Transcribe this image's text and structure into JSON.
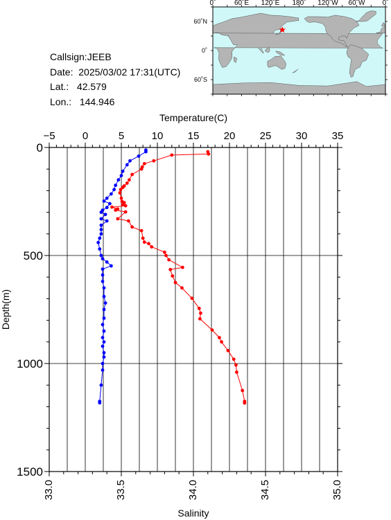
{
  "info": {
    "callsign": "Callsign:JEEB",
    "date_label": "Date:",
    "date_value": "2025/03/02 17:31(UTC)",
    "lat_label": "Lat.:",
    "lat_value": "42.579",
    "lon_label": "Lon.:",
    "lon_value": "144.946"
  },
  "map": {
    "top_labels": [
      "0˚",
      "60˚E",
      "120˚E",
      "180˚",
      "120˚W",
      "60˚W",
      "0˚"
    ],
    "lat_labels": [
      "60˚N",
      "0˚",
      "60˚S"
    ],
    "ocean_color": "#d0f8f8",
    "land_color": "#b4b4b4",
    "marker_color": "#ff0000",
    "marker": {
      "lon": 144.946,
      "lat": 42.579
    }
  },
  "chart_data": {
    "type": "line",
    "ylabel": "Depth(m)",
    "ylim": [
      0,
      1500
    ],
    "y_ticks": [
      0,
      500,
      1000,
      1500
    ],
    "y_tick_labels": [
      "0",
      "500",
      "1000",
      "1500"
    ],
    "y_inverted": true,
    "grid": true,
    "top_axis": {
      "label": "Temperature(C)",
      "range": [
        -5,
        35
      ],
      "ticks": [
        -5,
        0,
        5,
        10,
        15,
        20,
        25,
        30,
        35
      ],
      "tick_labels": [
        "−5",
        "0",
        "5",
        "10",
        "15",
        "20",
        "25",
        "30",
        "35"
      ]
    },
    "bottom_axis": {
      "label": "Salinity",
      "range": [
        33.0,
        35.0
      ],
      "ticks": [
        33.0,
        33.5,
        34.0,
        34.5,
        35.0
      ],
      "tick_labels": [
        "33.0",
        "33.5",
        "34.0",
        "34.5",
        "35.0"
      ]
    },
    "series": [
      {
        "axis": "top",
        "color": "#ff0000",
        "points": [
          [
            17.0,
            20
          ],
          [
            17.1,
            30
          ],
          [
            12.0,
            35
          ],
          [
            9.5,
            62
          ],
          [
            8.2,
            75
          ],
          [
            7.9,
            90
          ],
          [
            7.8,
            100
          ],
          [
            6.5,
            125
          ],
          [
            6.1,
            150
          ],
          [
            5.8,
            165
          ],
          [
            5.4,
            178
          ],
          [
            5.2,
            185
          ],
          [
            4.9,
            195
          ],
          [
            4.8,
            210
          ],
          [
            5.0,
            235
          ],
          [
            5.1,
            250
          ],
          [
            5.4,
            255
          ],
          [
            5.2,
            265
          ],
          [
            5.6,
            270
          ],
          [
            3.7,
            276
          ],
          [
            4.5,
            285
          ],
          [
            4.2,
            290
          ],
          [
            5.6,
            298
          ],
          [
            4.5,
            330
          ],
          [
            6.0,
            340
          ],
          [
            6.5,
            368
          ],
          [
            7.8,
            385
          ],
          [
            8.0,
            420
          ],
          [
            8.2,
            438
          ],
          [
            8.8,
            445
          ],
          [
            9.2,
            460
          ],
          [
            11.0,
            485
          ],
          [
            11.2,
            500
          ],
          [
            11.6,
            520
          ],
          [
            13.5,
            555
          ],
          [
            11.8,
            565
          ],
          [
            12.1,
            595
          ],
          [
            12.5,
            625
          ],
          [
            13.4,
            650
          ],
          [
            14.8,
            698
          ],
          [
            15.8,
            745
          ],
          [
            16.0,
            767
          ],
          [
            15.9,
            793
          ],
          [
            17.6,
            845
          ],
          [
            18.6,
            880
          ],
          [
            18.9,
            900
          ],
          [
            19.8,
            940
          ],
          [
            20.6,
            980
          ],
          [
            20.9,
            1007
          ],
          [
            21.0,
            1040
          ],
          [
            21.8,
            1125
          ],
          [
            22.1,
            1175
          ],
          [
            22.1,
            1183
          ]
        ]
      },
      {
        "axis": "bottom",
        "color": "#0000ff",
        "points": [
          [
            33.67,
            12
          ],
          [
            33.67,
            20
          ],
          [
            33.62,
            40
          ],
          [
            33.56,
            62
          ],
          [
            33.54,
            80
          ],
          [
            33.51,
            110
          ],
          [
            33.5,
            130
          ],
          [
            33.48,
            150
          ],
          [
            33.46,
            175
          ],
          [
            33.45,
            195
          ],
          [
            33.43,
            215
          ],
          [
            33.4,
            235
          ],
          [
            33.38,
            248
          ],
          [
            33.42,
            260
          ],
          [
            33.4,
            278
          ],
          [
            33.37,
            290
          ],
          [
            33.36,
            300
          ],
          [
            33.39,
            310
          ],
          [
            33.36,
            330
          ],
          [
            33.4,
            340
          ],
          [
            33.36,
            360
          ],
          [
            33.36,
            380
          ],
          [
            33.36,
            400
          ],
          [
            33.35,
            420
          ],
          [
            33.34,
            440
          ],
          [
            33.35,
            470
          ],
          [
            33.36,
            500
          ],
          [
            33.37,
            515
          ],
          [
            33.4,
            530
          ],
          [
            33.43,
            548
          ],
          [
            33.37,
            563
          ],
          [
            33.37,
            590
          ],
          [
            33.37,
            620
          ],
          [
            33.38,
            650
          ],
          [
            33.38,
            690
          ],
          [
            33.39,
            720
          ],
          [
            33.38,
            750
          ],
          [
            33.38,
            790
          ],
          [
            33.37,
            820
          ],
          [
            33.38,
            850
          ],
          [
            33.37,
            880
          ],
          [
            33.38,
            900
          ],
          [
            33.37,
            920
          ],
          [
            33.38,
            950
          ],
          [
            33.38,
            970
          ],
          [
            33.37,
            1000
          ],
          [
            33.37,
            1030
          ],
          [
            33.36,
            1100
          ],
          [
            33.35,
            1175
          ],
          [
            33.35,
            1182
          ]
        ]
      }
    ]
  }
}
